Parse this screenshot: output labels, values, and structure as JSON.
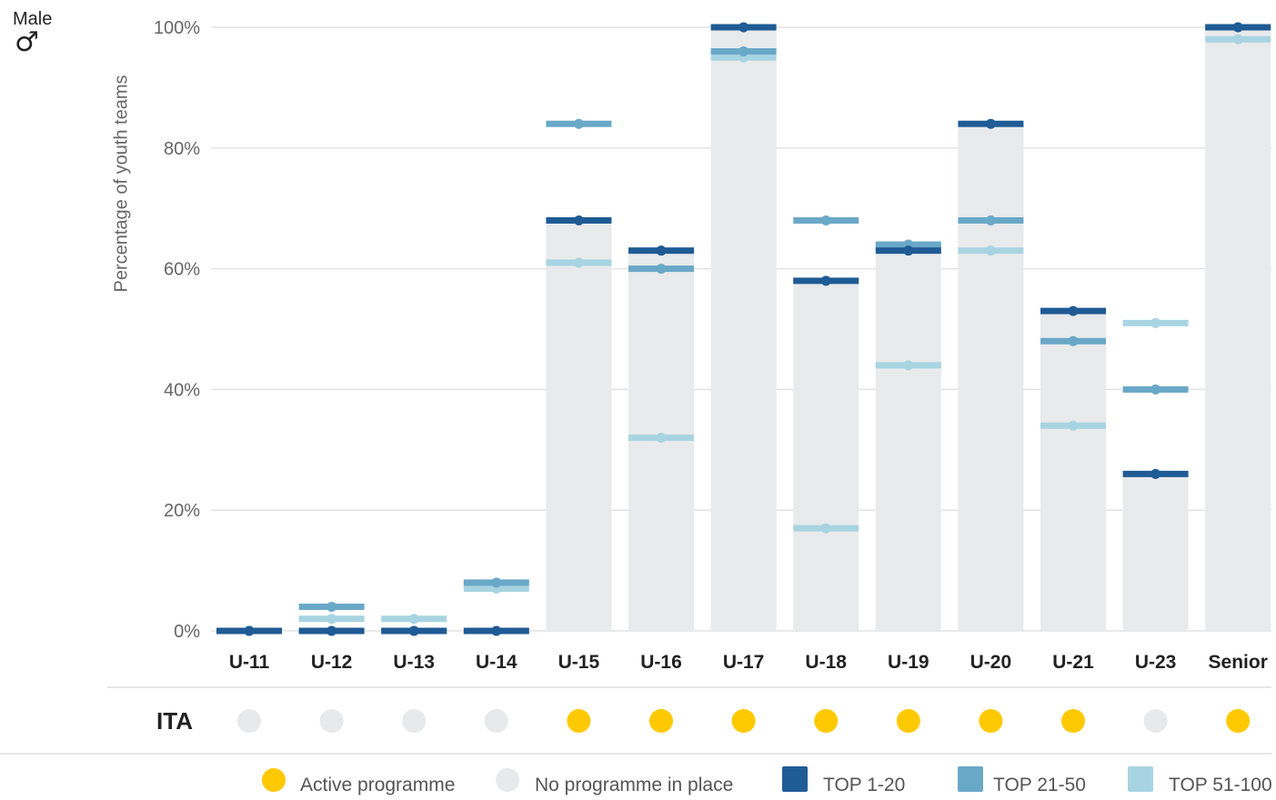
{
  "gender": {
    "label": "Male",
    "icon": "male-symbol-icon",
    "symbol": "♂"
  },
  "chart_data": {
    "type": "bar",
    "title": "",
    "ylabel": "Percentage of youth teams",
    "xlabel": "",
    "ylim": [
      0,
      100
    ],
    "yticks": [
      0,
      20,
      40,
      60,
      80,
      100
    ],
    "ytick_labels": [
      "0%",
      "20%",
      "40%",
      "60%",
      "80%",
      "100%"
    ],
    "grid": true,
    "categories": [
      "U-11",
      "U-12",
      "U-13",
      "U-14",
      "U-15",
      "U-16",
      "U-17",
      "U-18",
      "U-19",
      "U-20",
      "U-21",
      "U-23",
      "Senior"
    ],
    "bar_values": [
      0,
      0,
      0,
      0,
      68,
      63,
      100,
      58,
      64,
      84,
      53,
      26,
      100
    ],
    "series": [
      {
        "name": "TOP 1-20",
        "color": "#1f5b94",
        "values": [
          0,
          0,
          0,
          0,
          68,
          63,
          100,
          58,
          63,
          84,
          53,
          26,
          100
        ]
      },
      {
        "name": "TOP 21-50",
        "color": "#6aa8c8",
        "values": [
          0,
          4,
          0,
          8,
          84,
          60,
          96,
          68,
          64,
          68,
          48,
          40,
          100
        ]
      },
      {
        "name": "TOP 51-100",
        "color": "#a8d4e2",
        "values": [
          0,
          2,
          2,
          7,
          61,
          32,
          95,
          17,
          44,
          63,
          34,
          51,
          98
        ]
      }
    ],
    "ita_row": {
      "label": "ITA",
      "status": [
        "none",
        "none",
        "none",
        "none",
        "active",
        "active",
        "active",
        "active",
        "active",
        "active",
        "active",
        "none",
        "active"
      ]
    },
    "legend_position": "bottom"
  },
  "colors": {
    "bar_fill": "#e8eaec",
    "grid": "#e3e3e3",
    "active": "#ffc900",
    "none": "#e8e9eb",
    "series_1": "#1f5b94",
    "series_2": "#6aa8c8",
    "series_3": "#a8d4e2"
  },
  "legend": {
    "active": "Active programme",
    "none": "No programme in place",
    "top1": "TOP 1-20",
    "top2": "TOP 21-50",
    "top3": "TOP 51-100"
  }
}
